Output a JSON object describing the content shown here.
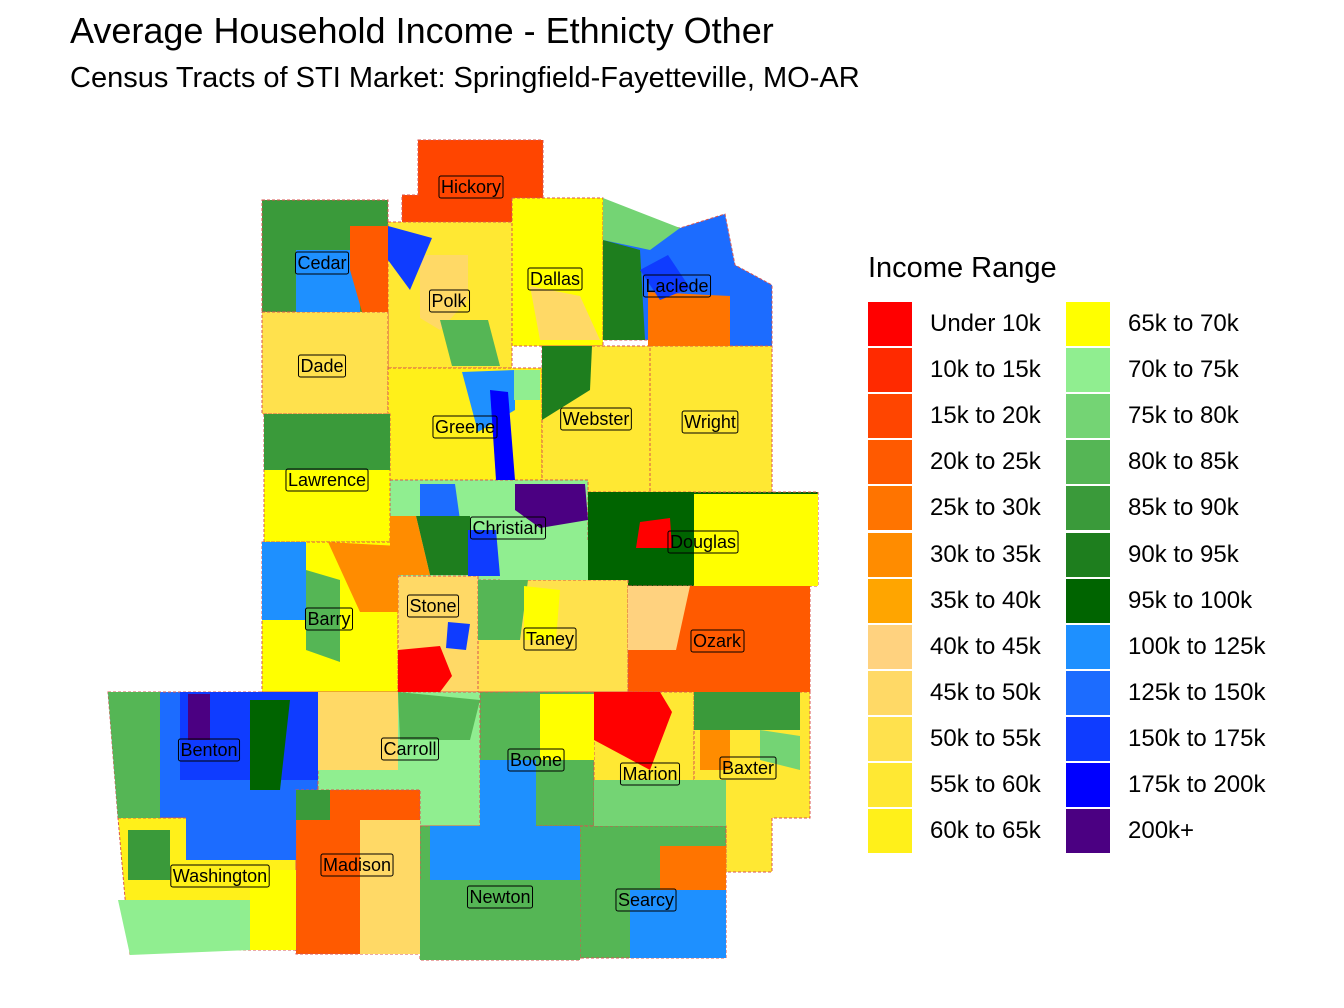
{
  "title": "Average Household Income - Ethnicty Other",
  "subtitle": "Census Tracts of STI Market: Springfield-Fayetteville, MO-AR",
  "legend": {
    "title": "Income Range",
    "items": [
      {
        "label": "Under 10k",
        "color": "#ff0000"
      },
      {
        "label": "10k to 15k",
        "color": "#ff2a00"
      },
      {
        "label": "15k to 20k",
        "color": "#ff4500"
      },
      {
        "label": "20k to 25k",
        "color": "#ff5a00"
      },
      {
        "label": "25k to 30k",
        "color": "#ff7400"
      },
      {
        "label": "30k to 35k",
        "color": "#ff8c00"
      },
      {
        "label": "35k to 40k",
        "color": "#ffa500"
      },
      {
        "label": "40k to 45k",
        "color": "#ffd27f"
      },
      {
        "label": "45k to 50k",
        "color": "#ffd966"
      },
      {
        "label": "50k to 55k",
        "color": "#ffe14d"
      },
      {
        "label": "55k to 60k",
        "color": "#ffe833"
      },
      {
        "label": "60k to 65k",
        "color": "#fff01a"
      },
      {
        "label": "65k to 70k",
        "color": "#ffff00"
      },
      {
        "label": "70k to 75k",
        "color": "#90ee90"
      },
      {
        "label": "75k to 80k",
        "color": "#74d474"
      },
      {
        "label": "80k to 85k",
        "color": "#55b655"
      },
      {
        "label": "85k to 90k",
        "color": "#3a9a3a"
      },
      {
        "label": "90k to 95k",
        "color": "#1e7e1e"
      },
      {
        "label": "95k to 100k",
        "color": "#006400"
      },
      {
        "label": "100k to 125k",
        "color": "#1e90ff"
      },
      {
        "label": "125k to 150k",
        "color": "#1c6cff"
      },
      {
        "label": "150k to 175k",
        "color": "#0f3cff"
      },
      {
        "label": "175k to 200k",
        "color": "#0000ff"
      },
      {
        "label": "200k+",
        "color": "#4b0082"
      }
    ]
  },
  "counties": [
    {
      "name": "Hickory",
      "income_range": "15k to 20k"
    },
    {
      "name": "Cedar",
      "income_range": "85k to 90k"
    },
    {
      "name": "Polk",
      "income_range": "55k to 60k"
    },
    {
      "name": "Dallas",
      "income_range": "65k to 70k"
    },
    {
      "name": "Laclede",
      "income_range": "125k to 150k"
    },
    {
      "name": "Dade",
      "income_range": "50k to 55k"
    },
    {
      "name": "Greene",
      "income_range": "60k to 65k"
    },
    {
      "name": "Webster",
      "income_range": "55k to 60k"
    },
    {
      "name": "Wright",
      "income_range": "55k to 60k"
    },
    {
      "name": "Lawrence",
      "income_range": "65k to 70k"
    },
    {
      "name": "Christian",
      "income_range": "70k to 75k"
    },
    {
      "name": "Douglas",
      "income_range": "95k to 100k"
    },
    {
      "name": "Barry",
      "income_range": "65k to 70k"
    },
    {
      "name": "Stone",
      "income_range": "45k to 50k"
    },
    {
      "name": "Taney",
      "income_range": "50k to 55k"
    },
    {
      "name": "Ozark",
      "income_range": "20k to 25k"
    },
    {
      "name": "Benton",
      "income_range": "125k to 150k"
    },
    {
      "name": "Carroll",
      "income_range": "70k to 75k"
    },
    {
      "name": "Boone",
      "income_range": "80k to 85k"
    },
    {
      "name": "Marion",
      "income_range": "55k to 60k"
    },
    {
      "name": "Baxter",
      "income_range": "55k to 60k"
    },
    {
      "name": "Washington",
      "income_range": "60k to 65k"
    },
    {
      "name": "Madison",
      "income_range": "20k to 25k"
    },
    {
      "name": "Newton",
      "income_range": "80k to 85k"
    },
    {
      "name": "Searcy",
      "income_range": "80k to 85k"
    }
  ]
}
